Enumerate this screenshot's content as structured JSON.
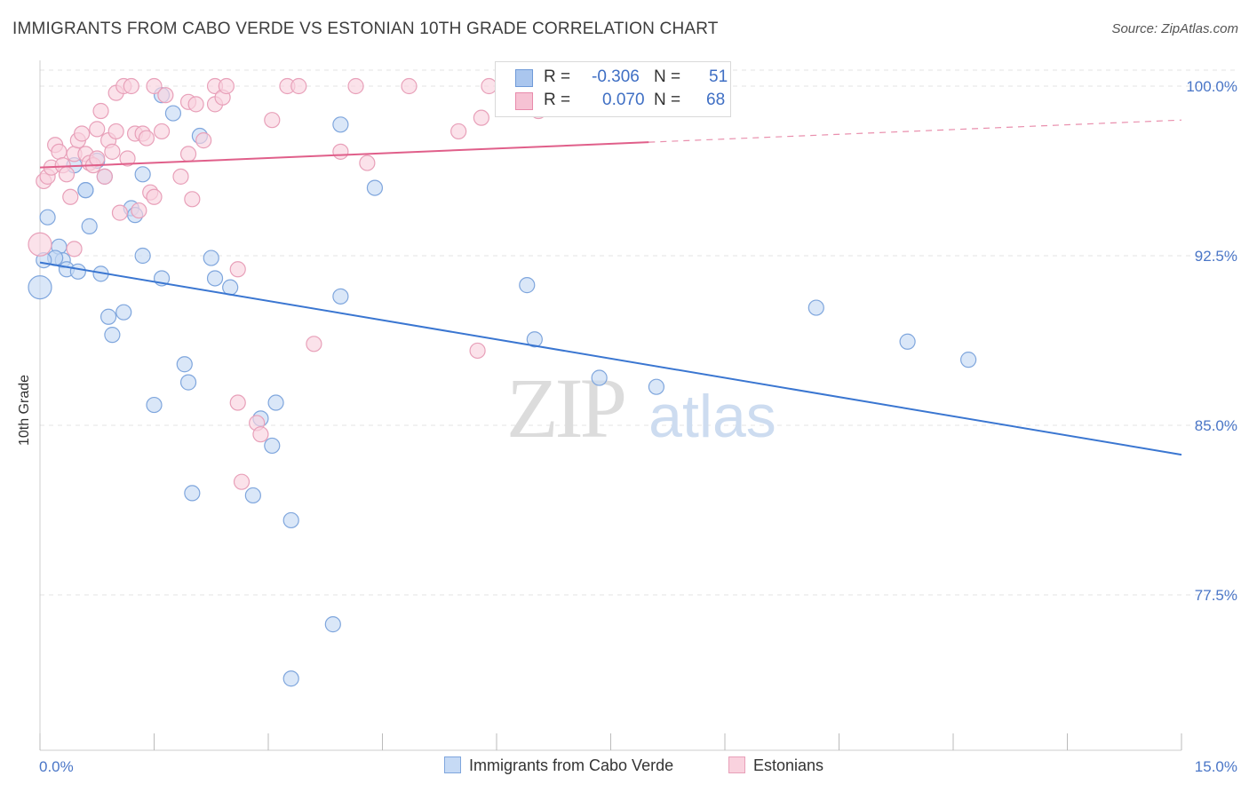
{
  "header": {
    "title": "IMMIGRANTS FROM CABO VERDE VS ESTONIAN 10TH GRADE CORRELATION CHART",
    "source": "Source: ZipAtlas.com"
  },
  "watermark": {
    "zip": "ZIP",
    "atlas": "atlas"
  },
  "legend": {
    "rows": [
      {
        "r_label": "R =",
        "r_value": "-0.306",
        "n_label": "N =",
        "n_value": "51",
        "color": "#aac6ee",
        "border": "#6f9ad8"
      },
      {
        "r_label": "R =",
        "r_value": "0.070",
        "n_label": "N =",
        "n_value": "68",
        "color": "#f6c2d3",
        "border": "#e88aab"
      }
    ]
  },
  "bottom_legend": [
    {
      "label": "Immigrants from Cabo Verde",
      "color": "#c6daf5",
      "border": "#7fa6dd"
    },
    {
      "label": "Estonians",
      "color": "#f9d2de",
      "border": "#e8a0b9"
    }
  ],
  "chart_data": {
    "type": "scatter",
    "title": "IMMIGRANTS FROM CABO VERDE VS ESTONIAN 10TH GRADE CORRELATION CHART",
    "xlabel": "",
    "ylabel": "10th Grade",
    "xlim": [
      0,
      15
    ],
    "ylim": [
      72.0,
      101.0
    ],
    "x_tick_labels": [
      "0.0%",
      "15.0%"
    ],
    "y_ticks": [
      77.5,
      85.0,
      92.5,
      100.0
    ],
    "y_tick_labels": [
      "77.5%",
      "85.0%",
      "92.5%",
      "100.0%"
    ],
    "grid": true,
    "series": [
      {
        "name": "Immigrants from Cabo Verde",
        "color": "#7fa6dd",
        "fill": "#c6daf5",
        "line_color": "#3a76d1",
        "trend": {
          "x": [
            0.0,
            15.0
          ],
          "y": [
            92.2,
            83.7
          ],
          "solid_until": 15.0
        },
        "points": [
          [
            0.0,
            91.1,
            14
          ],
          [
            0.1,
            94.2,
            10
          ],
          [
            0.2,
            92.4,
            10
          ],
          [
            0.25,
            92.9,
            10
          ],
          [
            0.3,
            92.3,
            10
          ],
          [
            0.35,
            91.9,
            10
          ],
          [
            0.5,
            91.8,
            10
          ],
          [
            0.45,
            96.5,
            10
          ],
          [
            0.6,
            95.4,
            10
          ],
          [
            0.65,
            93.8,
            10
          ],
          [
            0.75,
            96.7,
            10
          ],
          [
            0.8,
            91.7,
            10
          ],
          [
            0.85,
            96.0,
            10
          ],
          [
            0.9,
            89.8,
            10
          ],
          [
            0.95,
            89.0,
            10
          ],
          [
            1.1,
            90.0,
            10
          ],
          [
            1.2,
            94.6,
            10
          ],
          [
            1.25,
            94.3,
            10
          ],
          [
            1.35,
            92.5,
            10
          ],
          [
            1.35,
            96.1,
            10
          ],
          [
            1.5,
            85.9,
            10
          ],
          [
            1.6,
            91.5,
            10
          ],
          [
            1.6,
            99.6,
            10
          ],
          [
            1.75,
            98.8,
            10
          ],
          [
            1.9,
            87.7,
            10
          ],
          [
            1.95,
            86.9,
            10
          ],
          [
            2.0,
            82.0,
            10
          ],
          [
            2.1,
            97.8,
            10
          ],
          [
            2.25,
            92.4,
            10
          ],
          [
            2.3,
            91.5,
            10
          ],
          [
            2.5,
            91.1,
            10
          ],
          [
            2.8,
            81.9,
            10
          ],
          [
            2.9,
            85.3,
            10
          ],
          [
            3.05,
            84.1,
            10
          ],
          [
            3.1,
            86.0,
            10
          ],
          [
            3.3,
            80.8,
            10
          ],
          [
            3.3,
            73.8,
            10
          ],
          [
            3.85,
            76.2,
            10
          ],
          [
            3.95,
            90.7,
            10
          ],
          [
            3.95,
            98.3,
            10
          ],
          [
            4.4,
            95.5,
            10
          ],
          [
            6.4,
            91.2,
            10
          ],
          [
            6.5,
            88.8,
            10
          ],
          [
            7.35,
            87.1,
            10
          ],
          [
            8.1,
            86.7,
            10
          ],
          [
            10.2,
            90.2,
            10
          ],
          [
            11.4,
            88.7,
            10
          ],
          [
            12.2,
            87.9,
            10
          ],
          [
            0.2,
            92.4,
            10
          ],
          [
            0.05,
            92.3,
            10
          ],
          [
            0.6,
            95.4,
            10
          ]
        ]
      },
      {
        "name": "Estonians",
        "color": "#e8a0b9",
        "fill": "#f9d2de",
        "line_color": "#e05f8a",
        "trend": {
          "x": [
            0.0,
            15.0
          ],
          "y": [
            96.4,
            98.5
          ],
          "solid_until": 8.0
        },
        "points": [
          [
            0.0,
            93.0,
            14
          ],
          [
            0.05,
            95.8,
            10
          ],
          [
            0.1,
            96.0,
            10
          ],
          [
            0.15,
            96.4,
            10
          ],
          [
            0.2,
            97.4,
            10
          ],
          [
            0.25,
            97.1,
            10
          ],
          [
            0.3,
            96.5,
            10
          ],
          [
            0.35,
            96.1,
            10
          ],
          [
            0.4,
            95.1,
            10
          ],
          [
            0.45,
            97.0,
            10
          ],
          [
            0.45,
            92.8,
            10
          ],
          [
            0.5,
            97.6,
            10
          ],
          [
            0.55,
            97.9,
            10
          ],
          [
            0.6,
            97.0,
            10
          ],
          [
            0.65,
            96.6,
            10
          ],
          [
            0.7,
            96.5,
            10
          ],
          [
            0.75,
            96.8,
            10
          ],
          [
            0.75,
            98.1,
            10
          ],
          [
            0.8,
            98.9,
            10
          ],
          [
            0.85,
            96.0,
            10
          ],
          [
            0.9,
            97.6,
            10
          ],
          [
            0.95,
            97.1,
            10
          ],
          [
            1.0,
            98.0,
            10
          ],
          [
            1.0,
            99.7,
            10
          ],
          [
            1.05,
            94.4,
            10
          ],
          [
            1.1,
            100.0,
            10
          ],
          [
            1.15,
            96.8,
            10
          ],
          [
            1.2,
            100.0,
            10
          ],
          [
            1.25,
            97.9,
            10
          ],
          [
            1.3,
            94.5,
            10
          ],
          [
            1.35,
            97.9,
            10
          ],
          [
            1.4,
            97.7,
            10
          ],
          [
            1.45,
            95.3,
            10
          ],
          [
            1.5,
            100.0,
            10
          ],
          [
            1.5,
            95.1,
            10
          ],
          [
            1.6,
            98.0,
            10
          ],
          [
            1.65,
            99.6,
            10
          ],
          [
            1.85,
            96.0,
            10
          ],
          [
            1.95,
            99.3,
            10
          ],
          [
            1.95,
            97.0,
            10
          ],
          [
            2.0,
            95.0,
            10
          ],
          [
            2.05,
            99.2,
            10
          ],
          [
            2.15,
            97.6,
            10
          ],
          [
            2.3,
            99.2,
            10
          ],
          [
            2.3,
            100.0,
            10
          ],
          [
            2.4,
            99.5,
            10
          ],
          [
            2.45,
            100.0,
            10
          ],
          [
            2.6,
            86.0,
            10
          ],
          [
            2.6,
            91.9,
            10
          ],
          [
            2.65,
            82.5,
            10
          ],
          [
            2.85,
            85.1,
            10
          ],
          [
            2.9,
            84.6,
            10
          ],
          [
            3.05,
            98.5,
            10
          ],
          [
            3.25,
            100.0,
            10
          ],
          [
            3.4,
            100.0,
            10
          ],
          [
            3.6,
            88.6,
            10
          ],
          [
            3.95,
            97.1,
            10
          ],
          [
            4.15,
            100.0,
            10
          ],
          [
            4.3,
            96.6,
            10
          ],
          [
            4.85,
            100.0,
            10
          ],
          [
            5.5,
            98.0,
            10
          ],
          [
            5.75,
            88.3,
            10
          ],
          [
            5.8,
            98.6,
            10
          ],
          [
            5.9,
            100.0,
            10
          ],
          [
            6.1,
            100.0,
            10
          ],
          [
            6.55,
            98.9,
            10
          ],
          [
            7.85,
            100.0,
            10
          ],
          [
            8.0,
            100.0,
            10
          ]
        ]
      }
    ]
  }
}
